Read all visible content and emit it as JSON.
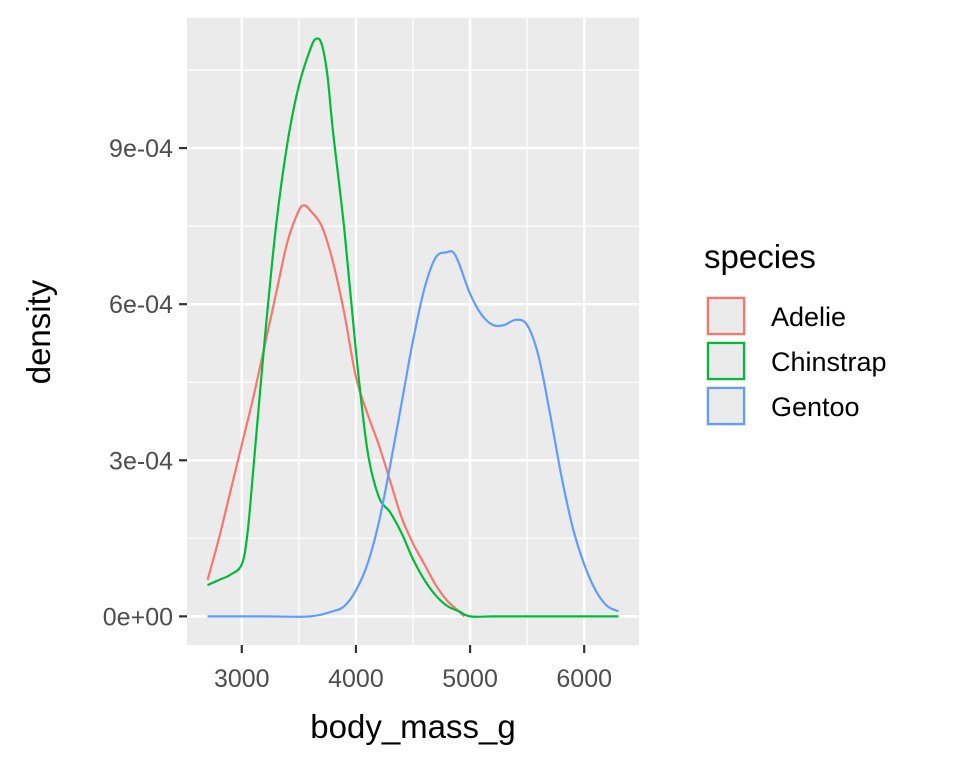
{
  "chart_data": {
    "type": "line",
    "chart_kind": "density",
    "xlabel": "body_mass_g",
    "ylabel": "density",
    "xlim": [
      2520,
      6480
    ],
    "ylim": [
      -5.5e-05,
      0.00115
    ],
    "x_ticks": [
      3000,
      4000,
      5000,
      6000
    ],
    "y_ticks": [
      0,
      0.0003,
      0.0006,
      0.0009
    ],
    "x_tick_labels": [
      "3000",
      "4000",
      "5000",
      "6000"
    ],
    "y_tick_labels": [
      "0e+00",
      "3e-04",
      "6e-04",
      "9e-04"
    ],
    "grid": true,
    "legend_title": "species",
    "legend_position": "right",
    "series": [
      {
        "name": "Adelie",
        "color": "#F8766D",
        "x": [
          2700,
          2800,
          2900,
          3000,
          3100,
          3200,
          3300,
          3400,
          3500,
          3550,
          3600,
          3700,
          3800,
          3900,
          4000,
          4100,
          4200,
          4300,
          4400,
          4500,
          4600,
          4700,
          4800,
          4900,
          4950
        ],
        "y": [
          7e-05,
          0.00015,
          0.00024,
          0.00033,
          0.00042,
          0.00052,
          0.00062,
          0.00072,
          0.00078,
          0.00079,
          0.00078,
          0.00075,
          0.00068,
          0.00058,
          0.00046,
          0.00039,
          0.00033,
          0.00026,
          0.00019,
          0.00014,
          0.0001,
          6e-05,
          3e-05,
          1e-05,
          0.0
        ]
      },
      {
        "name": "Chinstrap",
        "color": "#00BA38",
        "x": [
          2700,
          2800,
          2900,
          3000,
          3050,
          3100,
          3200,
          3300,
          3400,
          3500,
          3600,
          3650,
          3700,
          3750,
          3800,
          3900,
          4000,
          4100,
          4200,
          4300,
          4400,
          4500,
          4600,
          4700,
          4800,
          4900,
          5000,
          5200,
          5400,
          6300
        ],
        "y": [
          6e-05,
          7e-05,
          8e-05,
          0.0001,
          0.00016,
          0.00028,
          0.00053,
          0.00075,
          0.00091,
          0.00102,
          0.00109,
          0.00111,
          0.0011,
          0.00104,
          0.00093,
          0.00074,
          0.00051,
          0.00032,
          0.00023,
          0.0002,
          0.00016,
          0.00011,
          7e-05,
          4e-05,
          2e-05,
          1e-05,
          0.0,
          0.0,
          0.0,
          0.0
        ]
      },
      {
        "name": "Gentoo",
        "color": "#619CFF",
        "x": [
          2700,
          3200,
          3600,
          3800,
          3900,
          4000,
          4100,
          4200,
          4300,
          4400,
          4500,
          4600,
          4700,
          4800,
          4850,
          4900,
          5000,
          5100,
          5200,
          5300,
          5400,
          5500,
          5600,
          5700,
          5800,
          5900,
          6000,
          6100,
          6200,
          6300
        ],
        "y": [
          0.0,
          0.0,
          0.0,
          1e-05,
          2e-05,
          5e-05,
          0.0001,
          0.00018,
          0.00029,
          0.00041,
          0.00053,
          0.00063,
          0.00069,
          0.0007,
          0.0007,
          0.00068,
          0.00062,
          0.00058,
          0.00056,
          0.00056,
          0.00057,
          0.00056,
          0.0005,
          0.00039,
          0.00027,
          0.00017,
          0.0001,
          5e-05,
          2e-05,
          1e-05
        ]
      }
    ]
  }
}
